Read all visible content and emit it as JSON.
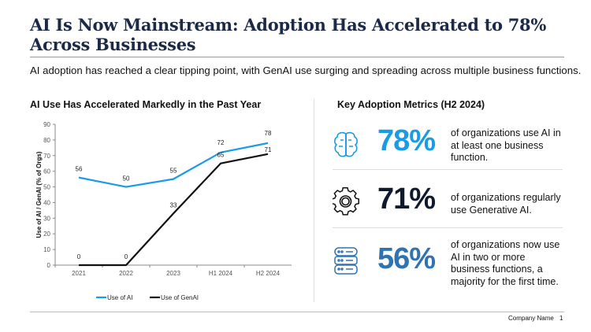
{
  "title": "AI Is Now Mainstream: Adoption Has Accelerated to 78% Across Businesses",
  "subtitle": "AI adoption has reached a clear tipping point, with GenAI use surging and spreading across multiple business functions.",
  "left_heading": "AI Use Has Accelerated Markedly in the Past Year",
  "right_heading": "Key Adoption Metrics (H2 2024)",
  "chart_data": {
    "type": "line",
    "categories": [
      "2021",
      "2022",
      "2023",
      "H1 2024",
      "H2 2024"
    ],
    "series": [
      {
        "name": "Use of AI",
        "values": [
          56,
          50,
          55,
          72,
          78
        ],
        "color": "#1a9be6"
      },
      {
        "name": "Use of GenAI",
        "values": [
          0,
          0,
          33,
          65,
          71
        ],
        "color": "#111111"
      }
    ],
    "ylabel": "Use of AI / GenAI (% of Orgs)",
    "ylim": [
      0,
      90
    ],
    "yticks": [
      0,
      10,
      20,
      30,
      40,
      50,
      60,
      70,
      80,
      90
    ],
    "grid": false,
    "legend": "bottom"
  },
  "metrics": [
    {
      "icon": "brain-icon",
      "value": "78%",
      "color": "#1a9be6",
      "text": [
        "of organizations use AI in",
        "at least one business",
        "function."
      ]
    },
    {
      "icon": "gear-icon",
      "value": "71%",
      "color": "#0f1b2d",
      "text": [
        "of organizations regularly",
        "use Generative AI."
      ]
    },
    {
      "icon": "database-icon",
      "value": "56%",
      "color": "#2f73b3",
      "text": [
        "of organizations now use",
        "AI in two or more",
        "business functions, a",
        "majority for the first time."
      ]
    }
  ],
  "footer": {
    "company": "Company Name",
    "page": "1"
  }
}
